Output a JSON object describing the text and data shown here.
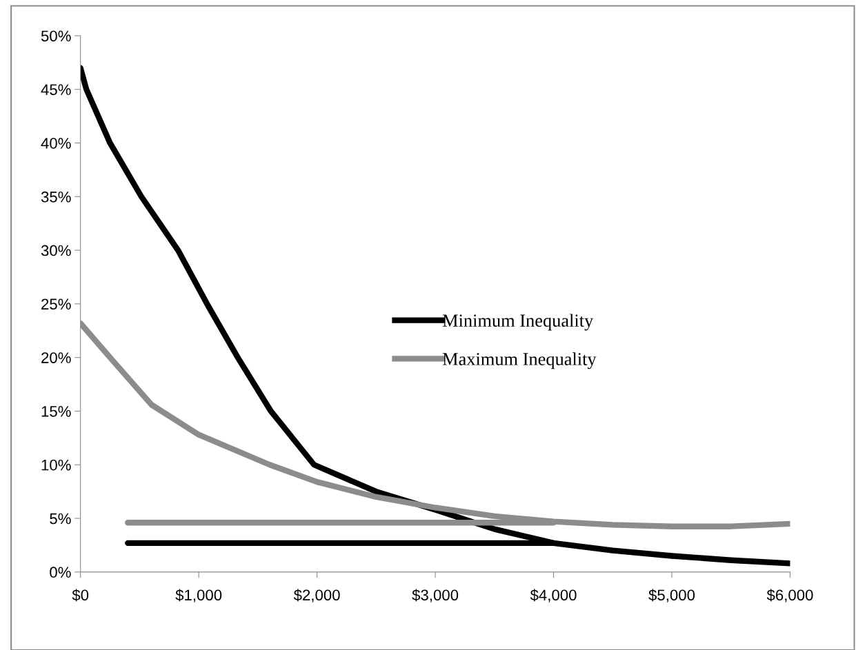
{
  "chart_data": {
    "type": "line",
    "xlim": [
      0,
      6000
    ],
    "ylim": [
      0,
      50
    ],
    "xticks": [
      {
        "value": 0,
        "label": "$0"
      },
      {
        "value": 1000,
        "label": "$1,000"
      },
      {
        "value": 2000,
        "label": "$2,000"
      },
      {
        "value": 3000,
        "label": "$3,000"
      },
      {
        "value": 4000,
        "label": "$4,000"
      },
      {
        "value": 5000,
        "label": "$5,000"
      },
      {
        "value": 6000,
        "label": "$6,000"
      }
    ],
    "yticks": [
      {
        "value": 0,
        "label": "0%"
      },
      {
        "value": 5,
        "label": "5%"
      },
      {
        "value": 10,
        "label": "10%"
      },
      {
        "value": 15,
        "label": "15%"
      },
      {
        "value": 20,
        "label": "20%"
      },
      {
        "value": 25,
        "label": "25%"
      },
      {
        "value": 30,
        "label": "30%"
      },
      {
        "value": 35,
        "label": "35%"
      },
      {
        "value": 40,
        "label": "40%"
      },
      {
        "value": 45,
        "label": "45%"
      },
      {
        "value": 50,
        "label": "50%"
      }
    ],
    "grid": false,
    "legend": "center",
    "marker": "none",
    "line_style": "solid",
    "series": [
      {
        "name": "Minimum Inequality",
        "color": "#000000",
        "x": [
          0,
          50,
          250,
          515,
          825,
          1070,
          1330,
          1610,
          1975,
          2500,
          3000,
          3500,
          4000,
          4500,
          5000,
          5500,
          6000
        ],
        "values": [
          47,
          45,
          40,
          35,
          30,
          25,
          20,
          15,
          10,
          7.5,
          5.8,
          4.0,
          2.7,
          2.0,
          1.5,
          1.1,
          0.8
        ]
      },
      {
        "name": "Maximum Inequality",
        "color": "#8c8c8c",
        "x": [
          0,
          250,
          600,
          1000,
          1600,
          2000,
          2500,
          3000,
          3500,
          4000,
          4500,
          5000,
          5500,
          6000
        ],
        "values": [
          23.2,
          20,
          15.6,
          12.8,
          10,
          8.4,
          7.0,
          6.0,
          5.2,
          4.7,
          4.4,
          4.25,
          4.25,
          4.5
        ]
      },
      {
        "color": "#000000",
        "x": [
          400,
          4000
        ],
        "values": [
          2.7,
          2.7
        ]
      },
      {
        "color": "#8c8c8c",
        "x": [
          400,
          4000
        ],
        "values": [
          4.6,
          4.6
        ]
      }
    ]
  }
}
